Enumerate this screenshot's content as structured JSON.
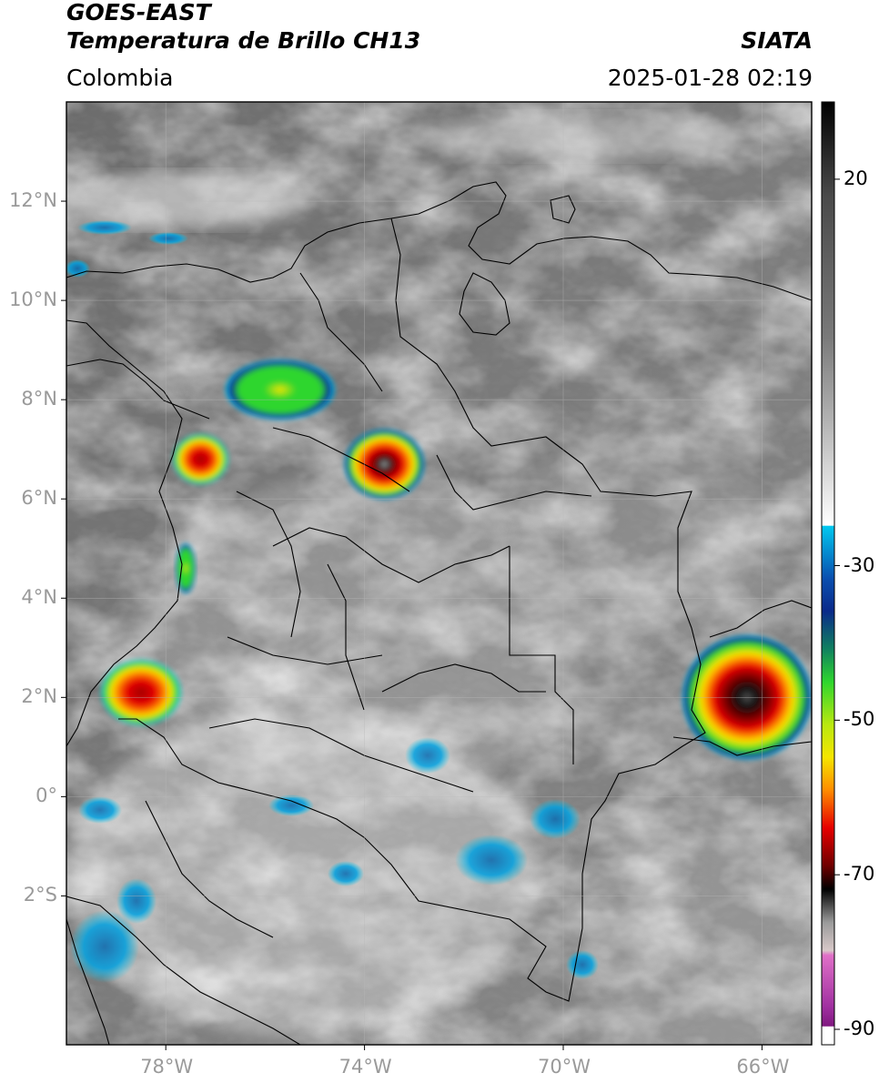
{
  "header": {
    "satellite": "GOES-EAST",
    "product": "Temperatura de Brillo CH13",
    "source": "SIATA",
    "region": "Colombia",
    "datetime": "2025-01-28 02:19"
  },
  "map": {
    "lat_ticks": [
      "12°N",
      "10°N",
      "8°N",
      "6°N",
      "4°N",
      "2°N",
      "0°",
      "2°S"
    ],
    "lat_values": [
      12,
      10,
      8,
      6,
      4,
      2,
      0,
      -2
    ],
    "lon_ticks": [
      "78°W",
      "74°W",
      "70°W",
      "66°W"
    ],
    "lon_values": [
      -78,
      -74,
      -70,
      -66
    ],
    "lon_range": [
      -80.0,
      -65.0
    ],
    "lat_range": [
      -5.0,
      14.0
    ],
    "grid": true
  },
  "colorbar": {
    "ticks": [
      "20",
      "-30",
      "-50",
      "-70",
      "-90"
    ],
    "tick_values": [
      20,
      -30,
      -50,
      -70,
      -90
    ],
    "range": [
      -92,
      30
    ],
    "colors": {
      "warm_gray": "#6a6a6a",
      "white": "#f5f5f5",
      "cyan": "#00c8f0",
      "dark_blue": "#0a2a8a",
      "green": "#2ed62e",
      "yellow": "#f5e600",
      "orange": "#ff8c00",
      "red": "#e60000",
      "dark_red": "#700000",
      "black": "#000000",
      "magenta": "#d060c0",
      "purple": "#801880"
    }
  },
  "storms": [
    {
      "name": "magdalena-medio",
      "lon": -73.6,
      "lat": 6.7,
      "rx": 1.6,
      "ry": 1.4,
      "peak": "dark_red"
    },
    {
      "name": "uraba",
      "lon": -77.3,
      "lat": 6.8,
      "rx": 1.1,
      "ry": 1.0,
      "peak": "red"
    },
    {
      "name": "cordoba",
      "lon": -75.7,
      "lat": 8.2,
      "rx": 2.2,
      "ry": 1.2,
      "peak": "green"
    },
    {
      "name": "narino-pacific",
      "lon": -78.5,
      "lat": 2.1,
      "rx": 1.6,
      "ry": 1.3,
      "peak": "red"
    },
    {
      "name": "amazonas-venezuela",
      "lon": -66.3,
      "lat": 2.0,
      "rx": 2.6,
      "ry": 2.5,
      "peak": "black"
    },
    {
      "name": "choco",
      "lon": -77.6,
      "lat": 4.6,
      "rx": 0.4,
      "ry": 1.0,
      "peak": "green"
    }
  ]
}
